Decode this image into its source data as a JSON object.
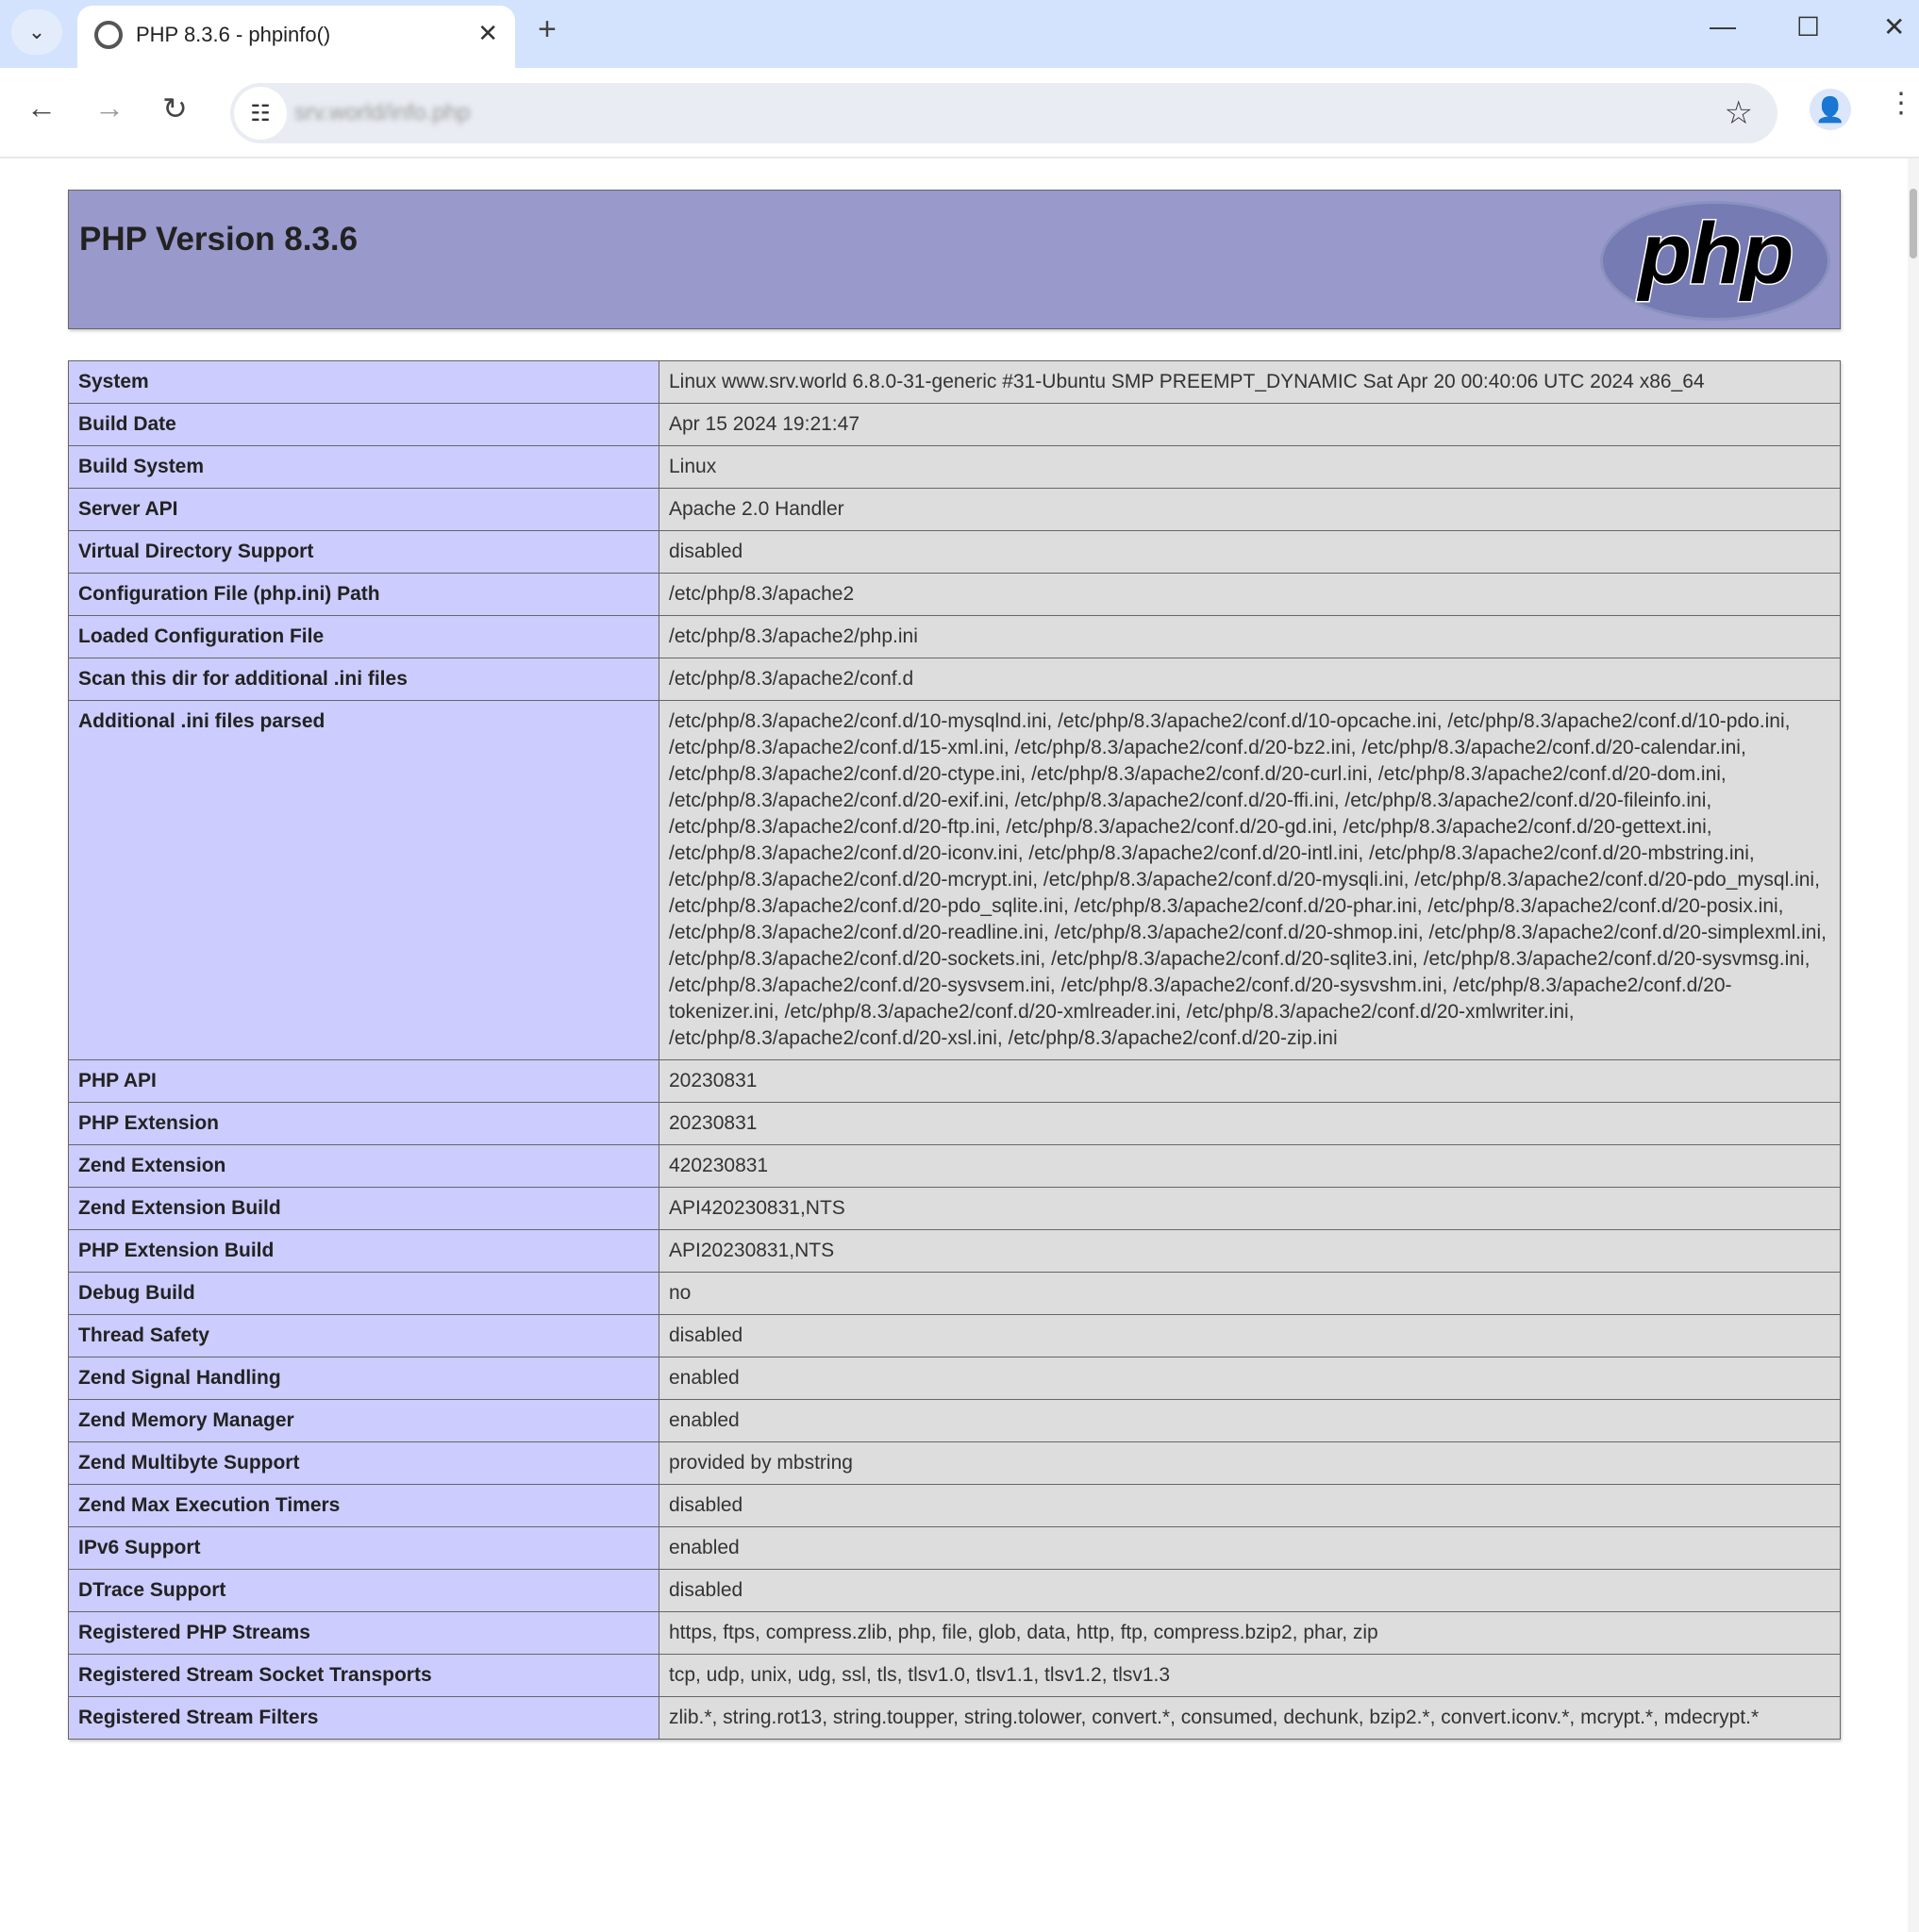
{
  "browser": {
    "tab_title": "PHP 8.3.6 - phpinfo()",
    "url": "srv.world/info.php",
    "colors": {
      "tabbar": "#d3e3fd",
      "omnibox": "#e9edf3"
    }
  },
  "page": {
    "title": "PHP Version 8.3.6",
    "logo_text": "php",
    "colors": {
      "header": "#9999cc",
      "label_cell": "#ccccff",
      "value_cell": "#dddddd"
    },
    "rows": [
      {
        "label": "System",
        "value": "Linux www.srv.world 6.8.0-31-generic #31-Ubuntu SMP PREEMPT_DYNAMIC Sat Apr 20 00:40:06 UTC 2024 x86_64"
      },
      {
        "label": "Build Date",
        "value": "Apr 15 2024 19:21:47"
      },
      {
        "label": "Build System",
        "value": "Linux"
      },
      {
        "label": "Server API",
        "value": "Apache 2.0 Handler"
      },
      {
        "label": "Virtual Directory Support",
        "value": "disabled"
      },
      {
        "label": "Configuration File (php.ini) Path",
        "value": "/etc/php/8.3/apache2"
      },
      {
        "label": "Loaded Configuration File",
        "value": "/etc/php/8.3/apache2/php.ini"
      },
      {
        "label": "Scan this dir for additional .ini files",
        "value": "/etc/php/8.3/apache2/conf.d"
      },
      {
        "label": "Additional .ini files parsed",
        "value": "/etc/php/8.3/apache2/conf.d/10-mysqlnd.ini, /etc/php/8.3/apache2/conf.d/10-opcache.ini, /etc/php/8.3/apache2/conf.d/10-pdo.ini, /etc/php/8.3/apache2/conf.d/15-xml.ini, /etc/php/8.3/apache2/conf.d/20-bz2.ini, /etc/php/8.3/apache2/conf.d/20-calendar.ini, /etc/php/8.3/apache2/conf.d/20-ctype.ini, /etc/php/8.3/apache2/conf.d/20-curl.ini, /etc/php/8.3/apache2/conf.d/20-dom.ini, /etc/php/8.3/apache2/conf.d/20-exif.ini, /etc/php/8.3/apache2/conf.d/20-ffi.ini, /etc/php/8.3/apache2/conf.d/20-fileinfo.ini, /etc/php/8.3/apache2/conf.d/20-ftp.ini, /etc/php/8.3/apache2/conf.d/20-gd.ini, /etc/php/8.3/apache2/conf.d/20-gettext.ini, /etc/php/8.3/apache2/conf.d/20-iconv.ini, /etc/php/8.3/apache2/conf.d/20-intl.ini, /etc/php/8.3/apache2/conf.d/20-mbstring.ini, /etc/php/8.3/apache2/conf.d/20-mcrypt.ini, /etc/php/8.3/apache2/conf.d/20-mysqli.ini, /etc/php/8.3/apache2/conf.d/20-pdo_mysql.ini, /etc/php/8.3/apache2/conf.d/20-pdo_sqlite.ini, /etc/php/8.3/apache2/conf.d/20-phar.ini, /etc/php/8.3/apache2/conf.d/20-posix.ini, /etc/php/8.3/apache2/conf.d/20-readline.ini, /etc/php/8.3/apache2/conf.d/20-shmop.ini, /etc/php/8.3/apache2/conf.d/20-simplexml.ini, /etc/php/8.3/apache2/conf.d/20-sockets.ini, /etc/php/8.3/apache2/conf.d/20-sqlite3.ini, /etc/php/8.3/apache2/conf.d/20-sysvmsg.ini, /etc/php/8.3/apache2/conf.d/20-sysvsem.ini, /etc/php/8.3/apache2/conf.d/20-sysvshm.ini, /etc/php/8.3/apache2/conf.d/20-tokenizer.ini, /etc/php/8.3/apache2/conf.d/20-xmlreader.ini, /etc/php/8.3/apache2/conf.d/20-xmlwriter.ini, /etc/php/8.3/apache2/conf.d/20-xsl.ini, /etc/php/8.3/apache2/conf.d/20-zip.ini"
      },
      {
        "label": "PHP API",
        "value": "20230831"
      },
      {
        "label": "PHP Extension",
        "value": "20230831"
      },
      {
        "label": "Zend Extension",
        "value": "420230831"
      },
      {
        "label": "Zend Extension Build",
        "value": "API420230831,NTS"
      },
      {
        "label": "PHP Extension Build",
        "value": "API20230831,NTS"
      },
      {
        "label": "Debug Build",
        "value": "no"
      },
      {
        "label": "Thread Safety",
        "value": "disabled"
      },
      {
        "label": "Zend Signal Handling",
        "value": "enabled"
      },
      {
        "label": "Zend Memory Manager",
        "value": "enabled"
      },
      {
        "label": "Zend Multibyte Support",
        "value": "provided by mbstring"
      },
      {
        "label": "Zend Max Execution Timers",
        "value": "disabled"
      },
      {
        "label": "IPv6 Support",
        "value": "enabled"
      },
      {
        "label": "DTrace Support",
        "value": "disabled"
      },
      {
        "label": "Registered PHP Streams",
        "value": "https, ftps, compress.zlib, php, file, glob, data, http, ftp, compress.bzip2, phar, zip"
      },
      {
        "label": "Registered Stream Socket Transports",
        "value": "tcp, udp, unix, udg, ssl, tls, tlsv1.0, tlsv1.1, tlsv1.2, tlsv1.3"
      },
      {
        "label": "Registered Stream Filters",
        "value": "zlib.*, string.rot13, string.toupper, string.tolower, convert.*, consumed, dechunk, bzip2.*, convert.iconv.*, mcrypt.*, mdecrypt.*"
      }
    ]
  }
}
